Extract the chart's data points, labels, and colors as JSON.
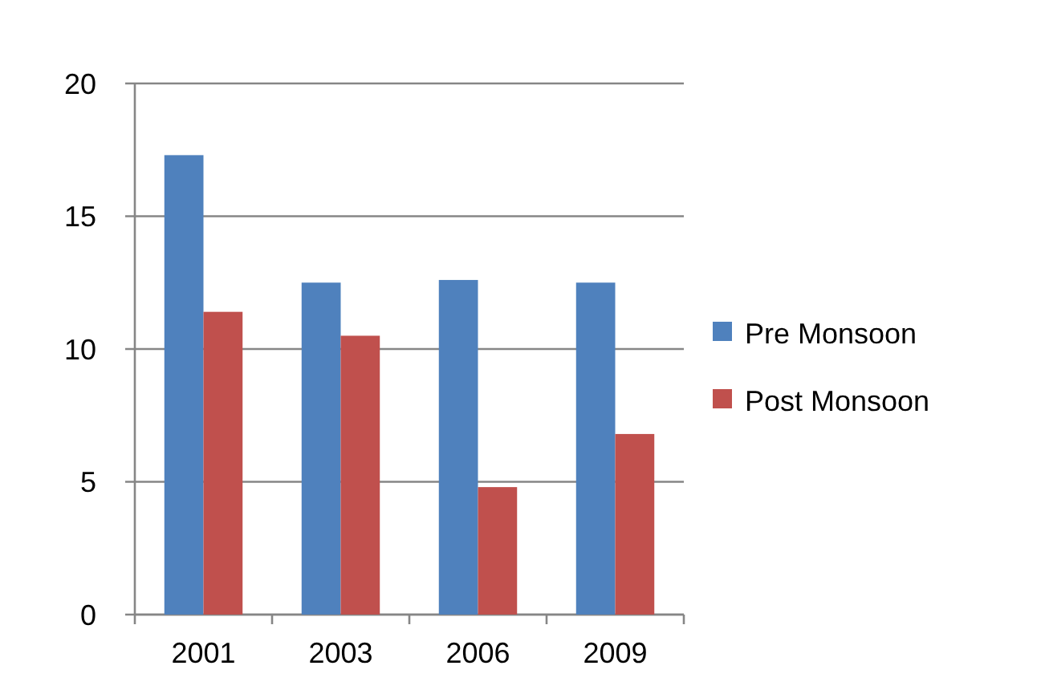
{
  "chart_data": {
    "type": "bar",
    "categories": [
      "2001",
      "2003",
      "2006",
      "2009"
    ],
    "series": [
      {
        "name": "Pre Monsoon",
        "color": "#4f81bd",
        "values": [
          17.3,
          12.5,
          12.6,
          12.5
        ]
      },
      {
        "name": "Post Monsoon",
        "color": "#c0504d",
        "values": [
          11.4,
          10.5,
          4.8,
          6.8
        ]
      }
    ],
    "ylim": [
      0,
      20
    ],
    "yticks": [
      0,
      5,
      10,
      15,
      20
    ],
    "grid": "y",
    "legend": "right"
  }
}
